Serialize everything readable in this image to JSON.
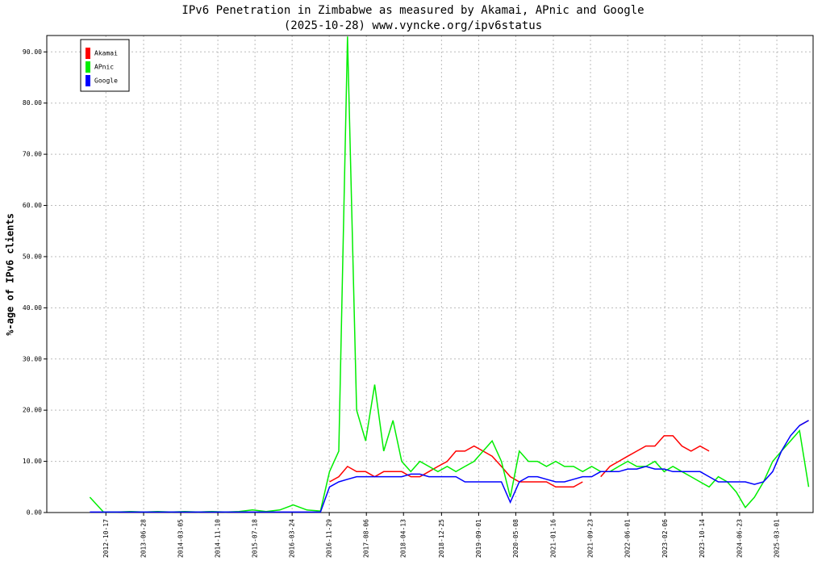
{
  "chart_data": {
    "type": "line",
    "title": "IPv6 Penetration in Zimbabwe as measured by Akamai, APnic and Google",
    "subtitle": "(2025-10-28) www.vyncke.org/ipv6status",
    "y_label": "%-age of IPv6 clients",
    "x": [
      "2012-07-01",
      "2012-10-01",
      "2013-01-01",
      "2013-04-01",
      "2013-07-01",
      "2013-10-01",
      "2014-01-01",
      "2014-04-01",
      "2014-07-01",
      "2014-10-01",
      "2015-01-01",
      "2015-04-01",
      "2015-07-01",
      "2015-10-01",
      "2016-01-01",
      "2016-04-01",
      "2016-07-01",
      "2016-10-01",
      "2016-12-01",
      "2017-02-01",
      "2017-04-01",
      "2017-06-01",
      "2017-08-01",
      "2017-10-01",
      "2017-12-01",
      "2018-02-01",
      "2018-04-01",
      "2018-06-01",
      "2018-08-01",
      "2018-10-01",
      "2018-12-01",
      "2019-02-01",
      "2019-04-01",
      "2019-06-01",
      "2019-08-01",
      "2019-10-01",
      "2019-12-01",
      "2020-02-01",
      "2020-04-01",
      "2020-06-01",
      "2020-08-01",
      "2020-10-01",
      "2020-12-01",
      "2021-02-01",
      "2021-04-01",
      "2021-06-01",
      "2021-08-01",
      "2021-10-01",
      "2021-12-01",
      "2022-02-01",
      "2022-04-01",
      "2022-06-01",
      "2022-08-01",
      "2022-10-01",
      "2022-12-01",
      "2023-02-01",
      "2023-04-01",
      "2023-06-01",
      "2023-08-01",
      "2023-10-01",
      "2023-12-01",
      "2024-02-01",
      "2024-04-01",
      "2024-06-01",
      "2024-08-01",
      "2024-10-01",
      "2024-12-01",
      "2025-02-01",
      "2025-04-01",
      "2025-06-01",
      "2025-08-01",
      "2025-10-01"
    ],
    "series": [
      {
        "name": "Akamai",
        "color": "#ff0000",
        "values": [
          null,
          null,
          null,
          null,
          null,
          null,
          null,
          null,
          null,
          null,
          null,
          null,
          null,
          null,
          null,
          null,
          null,
          null,
          6,
          7,
          9,
          8,
          8,
          7,
          8,
          8,
          8,
          7,
          7,
          8,
          9,
          10,
          12,
          12,
          13,
          12,
          11,
          9,
          7,
          6,
          6,
          6,
          6,
          5,
          5,
          5,
          6,
          null,
          7,
          9,
          10,
          11,
          12,
          13,
          13,
          15,
          15,
          13,
          12,
          13,
          12,
          null,
          null,
          null,
          null,
          null,
          null,
          null,
          null,
          null,
          17,
          18
        ]
      },
      {
        "name": "APnic",
        "color": "#00ee00",
        "values": [
          3,
          0.1,
          0.1,
          0.2,
          0.1,
          0.2,
          0.1,
          0.2,
          0.1,
          0.2,
          0.1,
          0.2,
          0.5,
          0.2,
          0.5,
          1.5,
          0.5,
          0.3,
          8,
          12,
          93,
          20,
          14,
          25,
          12,
          18,
          10,
          8,
          10,
          9,
          8,
          9,
          8,
          9,
          10,
          12,
          14,
          10,
          3,
          12,
          10,
          10,
          9,
          10,
          9,
          9,
          8,
          9,
          8,
          8,
          9,
          10,
          9,
          9,
          10,
          8,
          9,
          8,
          7,
          6,
          5,
          7,
          6,
          4,
          1,
          3,
          6,
          10,
          12,
          14,
          16,
          5
        ]
      },
      {
        "name": "Google",
        "color": "#0000ff",
        "values": [
          0.1,
          0.1,
          0.1,
          0.1,
          0.1,
          0.1,
          0.1,
          0.1,
          0.1,
          0.1,
          0.1,
          0.1,
          0.1,
          0.1,
          0.1,
          0.1,
          0.1,
          0.1,
          5,
          6,
          6.5,
          7,
          7,
          7,
          7,
          7,
          7,
          7.5,
          7.5,
          7,
          7,
          7,
          7,
          6,
          6,
          6,
          6,
          6,
          2,
          6,
          7,
          7,
          6.5,
          6,
          6,
          6.5,
          7,
          7,
          8,
          8,
          8,
          8.5,
          8.5,
          9,
          8.5,
          8.5,
          8,
          8,
          8,
          8,
          7,
          6,
          6,
          6,
          6,
          5.5,
          6,
          8,
          12,
          15,
          17,
          18
        ]
      }
    ],
    "xlim": [
      "2011-09-15",
      "2025-10-31"
    ],
    "xticks": [
      "2012-10-17",
      "2013-06-28",
      "2014-03-05",
      "2014-11-10",
      "2015-07-18",
      "2016-03-24",
      "2016-11-29",
      "2017-08-06",
      "2018-04-13",
      "2018-12-25",
      "2019-09-01",
      "2020-05-08",
      "2021-01-16",
      "2021-09-23",
      "2022-06-01",
      "2023-02-06",
      "2023-10-14",
      "2024-06-23",
      "2025-03-01"
    ],
    "ylim": [
      0,
      93.2
    ],
    "yticks": [
      {
        "value": 0,
        "label": "0.00"
      },
      {
        "value": 10,
        "label": "10.00"
      },
      {
        "value": 20,
        "label": "20.00"
      },
      {
        "value": 30,
        "label": "30.00"
      },
      {
        "value": 40,
        "label": "40.00"
      },
      {
        "value": 50,
        "label": "50.00"
      },
      {
        "value": 60,
        "label": "60.00"
      },
      {
        "value": 70,
        "label": "70.00"
      },
      {
        "value": 80,
        "label": "80.00"
      },
      {
        "value": 90,
        "label": "90.00"
      }
    ],
    "grid": true,
    "legend": "top-left"
  }
}
